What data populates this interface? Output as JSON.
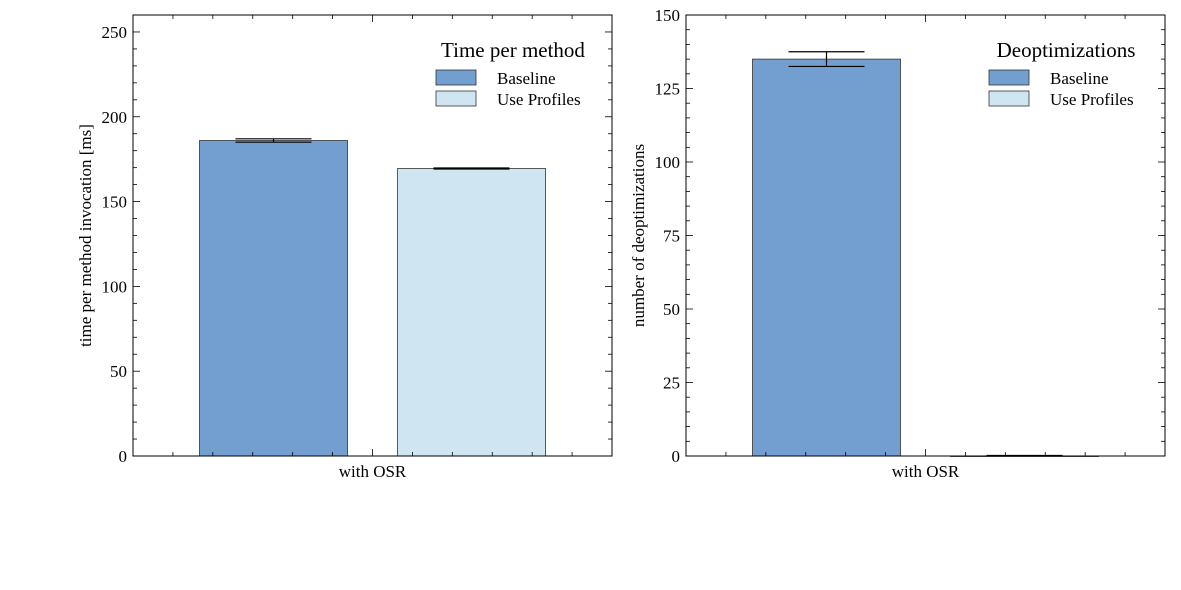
{
  "chart_data": [
    {
      "type": "bar",
      "title": "Time per method",
      "categories": [
        "with OSR"
      ],
      "xlabel": "",
      "ylabel": "time per method invocation [ms]",
      "ylim": [
        0,
        260
      ],
      "yticks": [
        0,
        50,
        100,
        150,
        200,
        250
      ],
      "series": [
        {
          "name": "Baseline",
          "values": [
            186
          ],
          "error": [
            1
          ],
          "color": "#729fcf"
        },
        {
          "name": "Use Profiles",
          "values": [
            169.5
          ],
          "error": [
            0.3
          ],
          "color": "#cfe5f2"
        }
      ],
      "legend_position": "top-right",
      "grid": false
    },
    {
      "type": "bar",
      "title": "Deoptimizations",
      "categories": [
        "with OSR"
      ],
      "xlabel": "",
      "ylabel": "number of deoptimizations",
      "ylim": [
        0,
        150
      ],
      "yticks": [
        0,
        25,
        50,
        75,
        100,
        125,
        150
      ],
      "series": [
        {
          "name": "Baseline",
          "values": [
            135
          ],
          "error": [
            2.5
          ],
          "color": "#729fcf"
        },
        {
          "name": "Use Profiles",
          "values": [
            0
          ],
          "error": [
            0
          ],
          "color": "#cfe5f2"
        }
      ],
      "legend_position": "top-right",
      "grid": false
    }
  ]
}
